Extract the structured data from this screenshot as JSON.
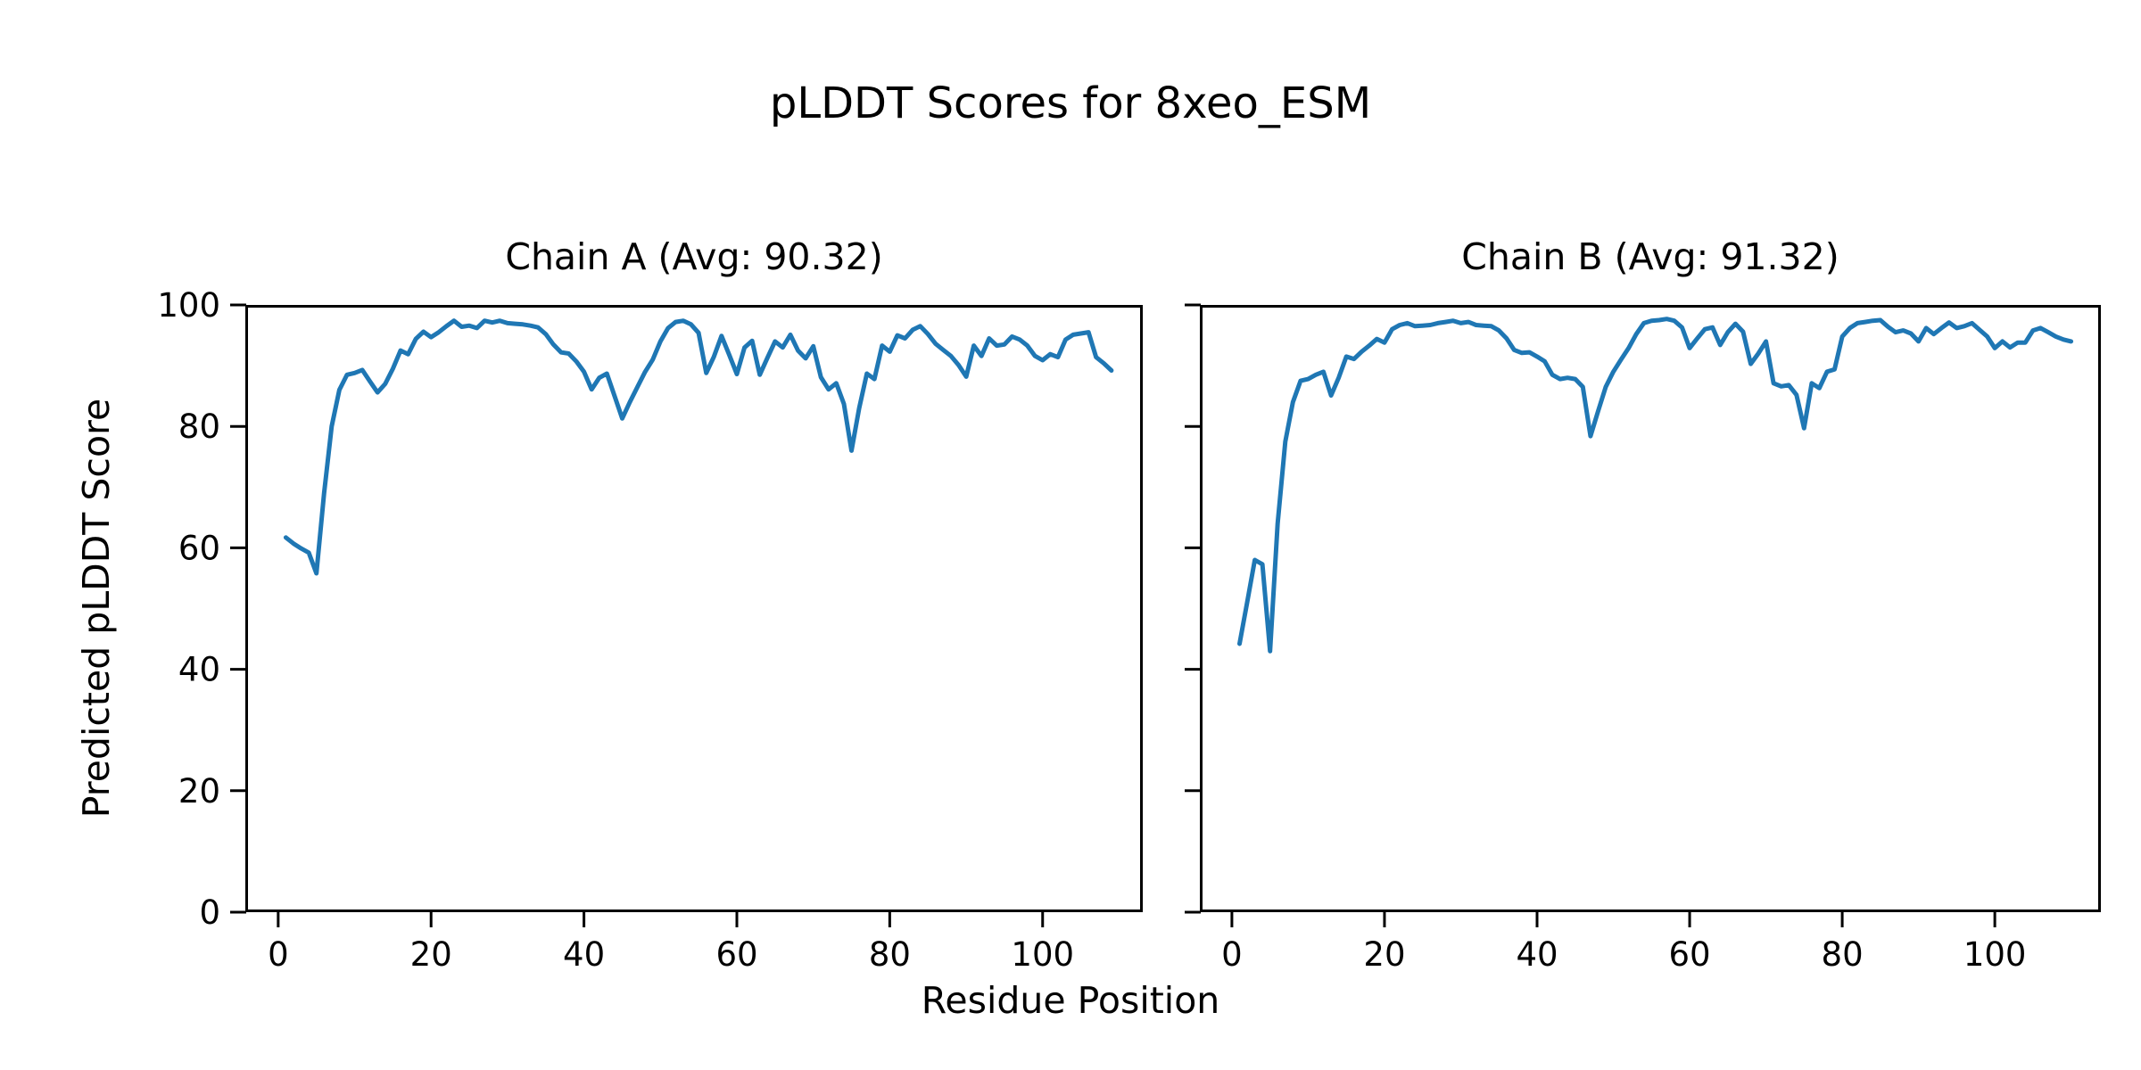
{
  "figure": {
    "suptitle": "pLDDT Scores for 8xeo_ESM",
    "xlabel": "Residue Position",
    "ylabel": "Predicted pLDDT Score",
    "line_color": "#1f77b4",
    "spine_color": "#000000",
    "text_color": "#000000",
    "background": "#ffffff"
  },
  "chart_data": [
    {
      "type": "line",
      "chain": "A",
      "title": "Chain A (Avg: 90.32)",
      "avg": 90.32,
      "xlabel": "Residue Position",
      "ylabel": "Predicted pLDDT Score",
      "xlim": [
        -4.3,
        113.1
      ],
      "ylim": [
        0,
        100
      ],
      "xticks": [
        0,
        20,
        40,
        60,
        80,
        100
      ],
      "yticks": [
        0,
        20,
        40,
        60,
        80,
        100
      ],
      "grid": false,
      "legend": "none",
      "x": [
        1,
        2,
        3,
        4,
        5,
        6,
        7,
        8,
        9,
        10,
        11,
        12,
        13,
        14,
        15,
        16,
        17,
        18,
        19,
        20,
        21,
        22,
        23,
        24,
        25,
        26,
        27,
        28,
        29,
        30,
        31,
        32,
        33,
        34,
        35,
        36,
        37,
        38,
        39,
        40,
        41,
        42,
        43,
        44,
        45,
        46,
        47,
        48,
        49,
        50,
        51,
        52,
        53,
        54,
        55,
        56,
        57,
        58,
        59,
        60,
        61,
        62,
        63,
        64,
        65,
        66,
        67,
        68,
        69,
        70,
        71,
        72,
        73,
        74,
        75,
        76,
        77,
        78,
        79,
        80,
        81,
        82,
        83,
        84,
        85,
        86,
        87,
        88,
        89,
        90,
        91,
        92,
        93,
        94,
        95,
        96,
        97,
        98,
        99,
        100,
        101,
        102,
        103,
        104,
        105,
        106,
        107,
        108,
        109
      ],
      "y": [
        61.7,
        60.7,
        59.9,
        59.2,
        55.8,
        69,
        80,
        86,
        88.5,
        88.8,
        89.3,
        87.4,
        85.6,
        87,
        89.5,
        92.5,
        91.9,
        94.4,
        95.6,
        94.7,
        95.5,
        96.5,
        97.4,
        96.4,
        96.6,
        96.2,
        97.4,
        97.1,
        97.4,
        97,
        96.9,
        96.8,
        96.6,
        96.3,
        95.2,
        93.5,
        92.2,
        92,
        90.7,
        89,
        86.1,
        88,
        88.7,
        85,
        81.3,
        84,
        86.5,
        89,
        91,
        94,
        96.2,
        97.2,
        97.4,
        96.8,
        95.4,
        88.8,
        91.5,
        94.9,
        91.8,
        88.6,
        93,
        94.1,
        88.5,
        91.3,
        94,
        93,
        95.1,
        92.5,
        91.2,
        93.2,
        88.1,
        86.1,
        87.1,
        83.7,
        76,
        83,
        88.7,
        87.8,
        93.3,
        92.3,
        95,
        94.5,
        95.9,
        96.5,
        95.2,
        93.6,
        92.6,
        91.6,
        90.1,
        88.2,
        93.3,
        91.6,
        94.5,
        93.3,
        93.5,
        94.8,
        94.3,
        93.3,
        91.6,
        90.9,
        91.9,
        91.4,
        94.3,
        95.1,
        95.3,
        95.5,
        91.4,
        90.4,
        89.2
      ]
    },
    {
      "type": "line",
      "chain": "B",
      "title": "Chain B (Avg: 91.32)",
      "avg": 91.32,
      "xlabel": "Residue Position",
      "ylabel": "Predicted pLDDT Score",
      "xlim": [
        -4.2,
        113.9
      ],
      "ylim": [
        0,
        100
      ],
      "xticks": [
        0,
        20,
        40,
        60,
        80,
        100
      ],
      "yticks": [
        0,
        20,
        40,
        60,
        80,
        100
      ],
      "grid": false,
      "legend": "none",
      "x": [
        1,
        2,
        3,
        4,
        5,
        6,
        7,
        8,
        9,
        10,
        11,
        12,
        13,
        14,
        15,
        16,
        17,
        18,
        19,
        20,
        21,
        22,
        23,
        24,
        25,
        26,
        27,
        28,
        29,
        30,
        31,
        32,
        33,
        34,
        35,
        36,
        37,
        38,
        39,
        40,
        41,
        42,
        43,
        44,
        45,
        46,
        47,
        48,
        49,
        50,
        51,
        52,
        53,
        54,
        55,
        56,
        57,
        58,
        59,
        60,
        61,
        62,
        63,
        64,
        65,
        66,
        67,
        68,
        69,
        70,
        71,
        72,
        73,
        74,
        75,
        76,
        77,
        78,
        79,
        80,
        81,
        82,
        83,
        84,
        85,
        86,
        87,
        88,
        89,
        90,
        91,
        92,
        93,
        94,
        95,
        96,
        97,
        98,
        99,
        100,
        101,
        102,
        103,
        104,
        105,
        106,
        107,
        108,
        109,
        110
      ],
      "y": [
        44.2,
        51,
        58,
        57.3,
        43,
        64,
        77.5,
        84,
        87.5,
        87.8,
        88.5,
        89,
        85.1,
        88,
        91.5,
        91.1,
        92.3,
        93.3,
        94.4,
        93.8,
        96,
        96.7,
        97,
        96.5,
        96.6,
        96.7,
        97,
        97.2,
        97.4,
        97,
        97.2,
        96.7,
        96.6,
        96.5,
        95.8,
        94.5,
        92.6,
        92.1,
        92.2,
        91.5,
        90.7,
        88.5,
        87.8,
        88,
        87.8,
        86.5,
        78.4,
        82.5,
        86.5,
        89,
        91,
        92.9,
        95.2,
        97,
        97.4,
        97.5,
        97.7,
        97.4,
        96.3,
        92.9,
        94.5,
        96,
        96.3,
        93.4,
        95.5,
        96.9,
        95.6,
        90.3,
        92,
        94,
        87.1,
        86.6,
        86.8,
        85.2,
        79.7,
        87.1,
        86.3,
        89,
        89.4,
        94.8,
        96.2,
        97,
        97.2,
        97.4,
        97.5,
        96.4,
        95.5,
        95.8,
        95.3,
        94,
        96.2,
        95.2,
        96.2,
        97.1,
        96.2,
        96.5,
        97,
        95.9,
        94.8,
        92.9,
        94,
        93,
        93.8,
        93.8,
        95.8,
        96.2,
        95.5,
        94.8,
        94.3,
        94
      ]
    }
  ]
}
